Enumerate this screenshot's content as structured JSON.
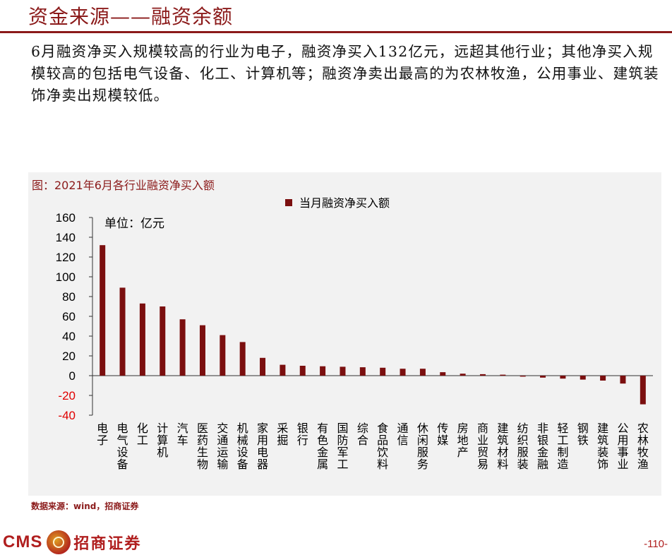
{
  "header": {
    "title": "资金来源——融资余额"
  },
  "summary": "6月融资净买入规模较高的行业为电子，融资净买入132亿元，远超其他行业；其他净买入规模较高的包括电气设备、化工、计算机等；融资净卖出最高的为农林牧渔，公用事业、建筑装饰净卖出规模较低。",
  "figure": {
    "caption": "图：2021年6月各行业融资净买入额",
    "source": "数据来源：wind，招商证券"
  },
  "footer": {
    "logo_text": "CMS",
    "logo_cn": "招商证券",
    "page_number": "-110-"
  },
  "colors": {
    "brand": "#8b1a1a",
    "bar": "#7b0f0f",
    "chart_bg": "#f2f2f2",
    "negative_tick": "#e00000"
  },
  "chart_data": {
    "type": "bar",
    "unit_label": "单位：亿元",
    "legend": [
      "当月融资净买入额"
    ],
    "legend_position": "top-center",
    "grid": false,
    "ylim": [
      -40,
      160
    ],
    "yticks": [
      "160",
      "140",
      "120",
      "100",
      "80",
      "60",
      "40",
      "20",
      "0",
      "-20",
      "-40"
    ],
    "ytick_values": [
      160,
      140,
      120,
      100,
      80,
      60,
      40,
      20,
      0,
      -20,
      -40
    ],
    "categories": [
      "电子",
      "电气设备",
      "化工",
      "计算机",
      "汽车",
      "医药生物",
      "交通运输",
      "机械设备",
      "家用电器",
      "采掘",
      "银行",
      "有色金属",
      "国防军工",
      "综合",
      "食品饮料",
      "通信",
      "休闲服务",
      "传媒",
      "房地产",
      "商业贸易",
      "建筑材料",
      "纺织服装",
      "非银金融",
      "轻工制造",
      "钢铁",
      "建筑装饰",
      "公用事业",
      "农林牧渔"
    ],
    "series": [
      {
        "name": "当月融资净买入额",
        "values": [
          132,
          89,
          73,
          70,
          57,
          51,
          41,
          34,
          18,
          11,
          10,
          9.5,
          9,
          8.5,
          8,
          7,
          7,
          3.5,
          2,
          1.5,
          1,
          -1,
          -2,
          -3,
          -4,
          -5,
          -8,
          -29
        ]
      }
    ]
  }
}
